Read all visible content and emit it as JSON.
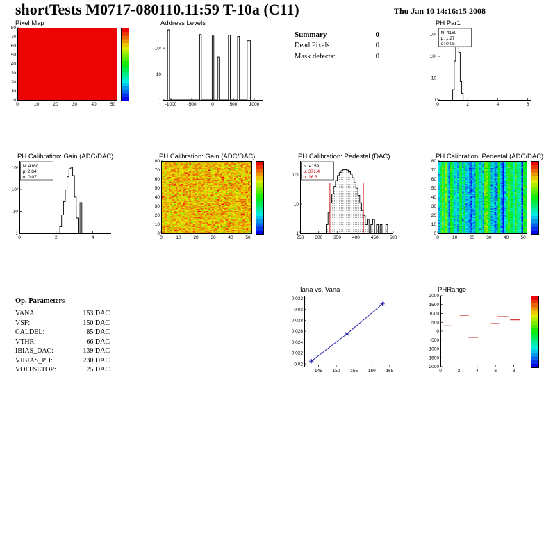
{
  "header": {
    "title": "shortTests M0717-080110.11:59 T-10a (C11)",
    "datetime": "Thu Jan 10 14:16:15 2008"
  },
  "summary": {
    "title": "Summary",
    "value": "0",
    "rows": [
      {
        "label": "Dead Pixels:",
        "value": "0"
      },
      {
        "label": "Mask defects:",
        "value": "0"
      }
    ]
  },
  "op_parameters": {
    "title": "Op. Parameters",
    "rows": [
      {
        "label": "VANA:",
        "value": "153 DAC"
      },
      {
        "label": "VSF:",
        "value": "150 DAC"
      },
      {
        "label": "CALDEL:",
        "value": "85 DAC"
      },
      {
        "label": "VTHR:",
        "value": "66 DAC"
      },
      {
        "label": "IBIAS_DAC:",
        "value": "139 DAC"
      },
      {
        "label": "VIBIAS_PH:",
        "value": "230 DAC"
      },
      {
        "label": "VOFFSETOP:",
        "value": "25 DAC"
      }
    ]
  },
  "chart_data": [
    {
      "id": "pixel-map",
      "type": "heatmap",
      "title": "Pixel Map",
      "xlim": [
        0,
        52
      ],
      "xticks": [
        0,
        10,
        20,
        30,
        40,
        50
      ],
      "ylim": [
        0,
        80
      ],
      "yticks": [
        0,
        10,
        20,
        30,
        40,
        50,
        60,
        70,
        80
      ],
      "nx": 52,
      "ny": 80,
      "pattern": "uniform",
      "value": 1.0,
      "seed": 3,
      "palette": "rainbow",
      "colorbar": true
    },
    {
      "id": "address-levels",
      "type": "histogram",
      "title": "Address Levels",
      "xlim": [
        -1200,
        1200
      ],
      "xticks": [
        -1000,
        -500,
        0,
        500,
        1000
      ],
      "ylog": true,
      "ylim": [
        1,
        600
      ],
      "yticks": [
        1,
        10,
        100
      ],
      "bins": [
        {
          "x": -1080,
          "w": 45,
          "c": 500
        },
        {
          "x": -310,
          "w": 40,
          "c": 330
        },
        {
          "x": -10,
          "w": 40,
          "c": 290
        },
        {
          "x": 120,
          "w": 35,
          "c": 45
        },
        {
          "x": 380,
          "w": 45,
          "c": 310
        },
        {
          "x": 600,
          "w": 45,
          "c": 280
        },
        {
          "x": 830,
          "w": 80,
          "c": 190
        }
      ]
    },
    {
      "id": "ph-par1",
      "type": "histogram",
      "title": "PH Par1",
      "stats": {
        "n": "N: 4160",
        "mu": "μ: 1.27",
        "sigma": "σ: 0.05"
      },
      "xlim": [
        0,
        6.2
      ],
      "xticks": [
        0,
        2,
        4,
        6
      ],
      "ylog": true,
      "ylim": [
        1,
        2000
      ],
      "yticks": [
        1,
        10,
        100,
        1000
      ],
      "binw": 0.1,
      "bins": [
        [
          1.0,
          3
        ],
        [
          1.1,
          60
        ],
        [
          1.2,
          900
        ],
        [
          1.3,
          1100
        ],
        [
          1.4,
          150
        ],
        [
          1.5,
          7
        ],
        [
          1.6,
          2
        ]
      ]
    },
    {
      "id": "ph-gain-hist",
      "type": "histogram",
      "title": "PH Calibration: Gain (ADC/DAC)",
      "stats": {
        "n": "N: 4160",
        "mu": "μ: 2.84",
        "sigma": "σ: 0.07"
      },
      "xlim": [
        0,
        5
      ],
      "xticks": [
        0,
        2,
        4
      ],
      "ylog": true,
      "ylim": [
        1,
        2000
      ],
      "yticks": [
        1,
        10,
        100,
        1000
      ],
      "binw": 0.1,
      "bins": [
        [
          2.2,
          2
        ],
        [
          2.3,
          7
        ],
        [
          2.4,
          28
        ],
        [
          2.5,
          95
        ],
        [
          2.6,
          380
        ],
        [
          2.7,
          900
        ],
        [
          2.8,
          1050
        ],
        [
          2.9,
          430
        ],
        [
          3.0,
          45
        ],
        [
          3.1,
          5
        ],
        [
          3.3,
          25
        ]
      ]
    },
    {
      "id": "ph-gain-map",
      "type": "heatmap",
      "title": "PH Calibration: Gain (ADC/DAC)",
      "xlim": [
        0,
        52
      ],
      "xticks": [
        0,
        10,
        20,
        30,
        40,
        50
      ],
      "ylim": [
        0,
        80
      ],
      "yticks": [
        0,
        10,
        20,
        30,
        40,
        50,
        60,
        70,
        80
      ],
      "nx": 52,
      "ny": 80,
      "pattern": "noise",
      "base": 0.8,
      "spread": 0.07,
      "seed": 7,
      "palette": "rainbow",
      "colorbar": true
    },
    {
      "id": "ph-pedestal-hist",
      "type": "histogram",
      "title": "PH Calibration: Pedestal (DAC)",
      "stats": {
        "n": "N: 4159",
        "mu": "μ: 371.4",
        "sigma": "σ: 16.3",
        "accent": "#cc0000"
      },
      "xlim": [
        250,
        500
      ],
      "xticks": [
        250,
        300,
        350,
        400,
        450,
        500
      ],
      "ylog": true,
      "ylim": [
        1,
        300
      ],
      "yticks": [
        1,
        10,
        100
      ],
      "fill": "dots",
      "marker_lines": [
        330,
        420
      ],
      "marker_color": "#cc2222",
      "binw": 5,
      "bins": [
        [
          315,
          1
        ],
        [
          320,
          2
        ],
        [
          325,
          5
        ],
        [
          330,
          11
        ],
        [
          335,
          22
        ],
        [
          340,
          40
        ],
        [
          345,
          65
        ],
        [
          350,
          95
        ],
        [
          355,
          120
        ],
        [
          360,
          140
        ],
        [
          365,
          150
        ],
        [
          370,
          152
        ],
        [
          375,
          146
        ],
        [
          380,
          128
        ],
        [
          385,
          105
        ],
        [
          390,
          80
        ],
        [
          395,
          55
        ],
        [
          400,
          35
        ],
        [
          405,
          20
        ],
        [
          410,
          11
        ],
        [
          415,
          6
        ],
        [
          420,
          4
        ],
        [
          425,
          2
        ],
        [
          430,
          3
        ],
        [
          435,
          1
        ],
        [
          440,
          2
        ],
        [
          445,
          3
        ],
        [
          450,
          1
        ],
        [
          455,
          2
        ],
        [
          460,
          1
        ],
        [
          465,
          2
        ],
        [
          470,
          1
        ],
        [
          475,
          1
        ],
        [
          480,
          2
        ],
        [
          485,
          1
        ]
      ]
    },
    {
      "id": "ph-pedestal-map",
      "type": "heatmap",
      "title": "PH Calibration: Pedestal (ADC/DAC)",
      "xlim": [
        0,
        52
      ],
      "xticks": [
        0,
        10,
        20,
        30,
        40,
        50
      ],
      "ylim": [
        0,
        80
      ],
      "yticks": [
        0,
        10,
        20,
        30,
        40,
        50,
        60,
        70,
        80
      ],
      "nx": 52,
      "ny": 80,
      "pattern": "columns",
      "base": 0.3,
      "col_spread": 0.13,
      "cell_spread": 0.06,
      "seed": 13,
      "palette": "rainbow",
      "colorbar": true
    },
    {
      "id": "iana-vs-vana",
      "type": "line",
      "title": "Iana vs. Vana",
      "x": [
        143,
        153,
        163
      ],
      "y": [
        0.0205,
        0.0255,
        0.031
      ],
      "xlim": [
        141,
        166
      ],
      "xticks": [
        145,
        150,
        155,
        160,
        165
      ],
      "ylim": [
        0.0195,
        0.0325
      ],
      "yticks": [
        "0.02",
        "0.022",
        "0.024",
        "0.026",
        "0.028",
        "0.03",
        "0.032"
      ],
      "color": "#2323aa",
      "marker": "star"
    },
    {
      "id": "ph-range",
      "type": "segments",
      "title": "PHRange",
      "xlim": [
        0,
        9.4
      ],
      "xticks": [
        0,
        2,
        4,
        6,
        8
      ],
      "ylim": [
        -2000,
        2000
      ],
      "yticks": [
        -2000,
        -1500,
        -1000,
        -500,
        0,
        500,
        1000,
        1500,
        2000
      ],
      "segments": [
        [
          2.1,
          3.1,
          900
        ],
        [
          6.2,
          7.4,
          820
        ],
        [
          7.6,
          8.7,
          640
        ],
        [
          0.3,
          1.2,
          300
        ],
        [
          5.5,
          6.4,
          430
        ],
        [
          3.0,
          4.1,
          -350
        ]
      ],
      "color": "#cc2222",
      "colorbar": true
    }
  ]
}
